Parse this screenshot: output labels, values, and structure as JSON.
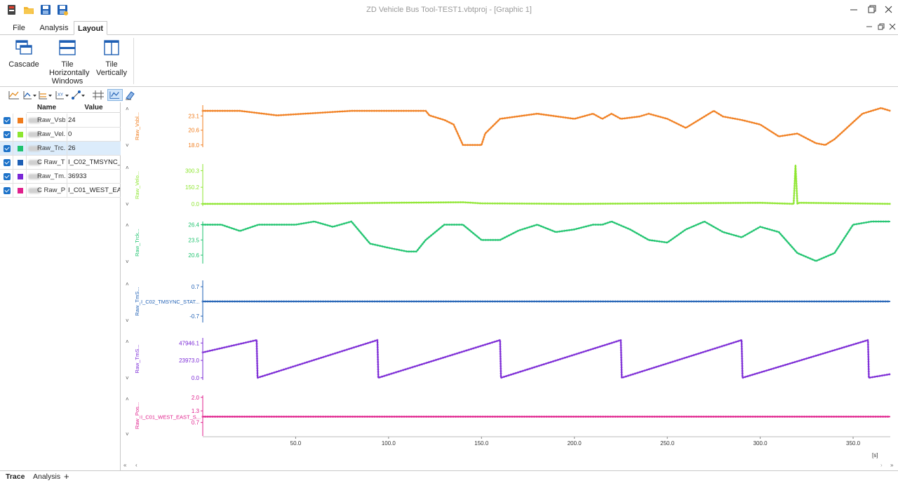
{
  "window": {
    "title": "ZD Vehicle Bus Tool-TEST1.vbtproj - [Graphic 1]"
  },
  "quick_access": [
    "app-icon",
    "open-folder-icon",
    "save-icon",
    "save-as-icon"
  ],
  "ribbon_tabs": [
    {
      "label": "File"
    },
    {
      "label": "Analysis"
    },
    {
      "label": "Layout",
      "active": true
    }
  ],
  "ribbon": {
    "buttons": [
      {
        "label": "Cascade",
        "icon": "cascade-icon"
      },
      {
        "label": "Tile Horizontally",
        "icon": "tile-horizontal-icon"
      },
      {
        "label": "Tile Vertically",
        "icon": "tile-vertical-icon"
      }
    ],
    "group_label": "Windows"
  },
  "toolbar_icons": [
    "add-axis-icon",
    "axis-dropdown-icon",
    "multi-axis-icon",
    "xy-axis-icon",
    "marker-icon",
    "crosshair-icon",
    "chart-mode-icon",
    "clear-icon"
  ],
  "signal_table": {
    "headers": {
      "name": "Name",
      "value": "Value"
    },
    "rows": [
      {
        "name": "Raw_Vsb...",
        "value": "24",
        "color": "#f07c1c",
        "selected": false
      },
      {
        "name": "Raw_Vel...",
        "value": "0",
        "color": "#8ee630",
        "selected": false
      },
      {
        "name": "Raw_Trc...",
        "value": "26",
        "color": "#1ec36e",
        "selected": true
      },
      {
        "name": "C  Raw_Tm...",
        "value": "I_C02_TMSYNC_S...",
        "color": "#1e5fb4",
        "selected": false
      },
      {
        "name": "Raw_Tm...",
        "value": "36933",
        "color": "#7a28d6",
        "selected": false
      },
      {
        "name": "C  Raw_Pos...",
        "value": "I_C01_WEST_EAS...",
        "color": "#e0208c",
        "selected": false
      }
    ]
  },
  "chart_data": {
    "type": "line",
    "x_unit": "[s]",
    "xlim": [
      0,
      370
    ],
    "x_ticks": [
      "50.0",
      "100.0",
      "150.0",
      "200.0",
      "250.0",
      "300.0",
      "350.0"
    ],
    "panels": [
      {
        "name": "Raw_Vsbl...",
        "color": "#f07c1c",
        "ylim": [
          17.6,
          25.0
        ],
        "y_ticks": [
          "23.1",
          "20.6",
          "18.0"
        ],
        "series": {
          "x": [
            0,
            20,
            40,
            80,
            81,
            120,
            122,
            130,
            135,
            140,
            150,
            152,
            160,
            180,
            200,
            210,
            215,
            220,
            225,
            235,
            240,
            250,
            260,
            270,
            275,
            280,
            290,
            300,
            310,
            320,
            330,
            335,
            340,
            345,
            350,
            355,
            360,
            365,
            370
          ],
          "y": [
            24.0,
            24.0,
            23.2,
            24.0,
            24.0,
            24.0,
            23.2,
            22.4,
            21.6,
            18.0,
            18.0,
            20.0,
            22.6,
            23.5,
            22.6,
            23.5,
            22.6,
            23.5,
            22.6,
            23.0,
            23.5,
            22.6,
            21.0,
            23.0,
            24.0,
            23.0,
            22.4,
            21.6,
            19.5,
            20.0,
            18.3,
            18.0,
            19.0,
            20.5,
            22.0,
            23.5,
            24.0,
            24.5,
            24.0
          ]
        }
      },
      {
        "name": "Raw_Velo...",
        "color": "#8ee630",
        "ylim": [
          -20,
          360
        ],
        "y_ticks": [
          "300.3",
          "150.2",
          "0.0"
        ],
        "series": {
          "x": [
            0,
            50,
            100,
            140,
            150,
            200,
            250,
            300,
            318,
            319,
            320,
            321,
            322,
            370
          ],
          "y": [
            0,
            0,
            10,
            15,
            5,
            0,
            5,
            10,
            0,
            350,
            0,
            10,
            10,
            0
          ]
        }
      },
      {
        "name": "Raw_Trck...",
        "color": "#1ec36e",
        "ylim": [
          19.0,
          27.0
        ],
        "y_ticks": [
          "26.4",
          "23.5",
          "20.6"
        ],
        "series": {
          "x": [
            0,
            10,
            20,
            30,
            50,
            60,
            70,
            80,
            90,
            100,
            110,
            115,
            120,
            130,
            140,
            150,
            160,
            170,
            180,
            190,
            200,
            210,
            215,
            220,
            230,
            240,
            250,
            260,
            270,
            280,
            290,
            300,
            310,
            320,
            330,
            340,
            350,
            360,
            370
          ],
          "y": [
            26.4,
            26.4,
            25.2,
            26.4,
            26.4,
            27.0,
            26.0,
            27.0,
            22.8,
            22.0,
            21.3,
            21.3,
            23.5,
            26.4,
            26.4,
            23.5,
            23.5,
            25.3,
            26.4,
            25.0,
            25.5,
            26.4,
            26.4,
            27.0,
            25.5,
            23.5,
            23.0,
            25.5,
            27.0,
            25.0,
            24.0,
            26.0,
            25.0,
            21.0,
            19.5,
            21.0,
            26.4,
            27.0,
            27.0
          ]
        }
      },
      {
        "name": "Raw_TmS...",
        "color": "#1e5fb4",
        "ylim": [
          -1.0,
          1.0
        ],
        "y_ticks": [
          "0.7",
          "-0.7"
        ],
        "state_label": "I_C02_TMSYNC_STAT...",
        "series": {
          "x": [
            0,
            370
          ],
          "y": [
            0,
            0
          ]
        }
      },
      {
        "name": "Raw_TmS...",
        "color": "#7a28d6",
        "ylim": [
          -3000,
          55000
        ],
        "y_ticks": [
          "47946.1",
          "23973.0",
          "0.0"
        ],
        "series": {
          "x": [
            0,
            29,
            29.5,
            94,
            94.5,
            160,
            160.5,
            225,
            225.5,
            290,
            290.5,
            358,
            358.5,
            370
          ],
          "y": [
            35000,
            52000,
            0,
            52000,
            0,
            52000,
            0,
            52000,
            0,
            52000,
            0,
            52000,
            0,
            5000
          ]
        }
      },
      {
        "name": "Raw_Pos...",
        "color": "#e0208c",
        "ylim": [
          0.0,
          2.1
        ],
        "y_ticks": [
          "2.0",
          "1.3",
          "0.7"
        ],
        "state_label": "I_C01_WEST_EAST_S...",
        "series": {
          "x": [
            0,
            370
          ],
          "y": [
            1.0,
            1.0
          ]
        }
      }
    ]
  },
  "bottom_tabs": [
    {
      "label": "Trace",
      "active": true
    },
    {
      "label": "Analysis"
    },
    {
      "label": "+"
    }
  ]
}
